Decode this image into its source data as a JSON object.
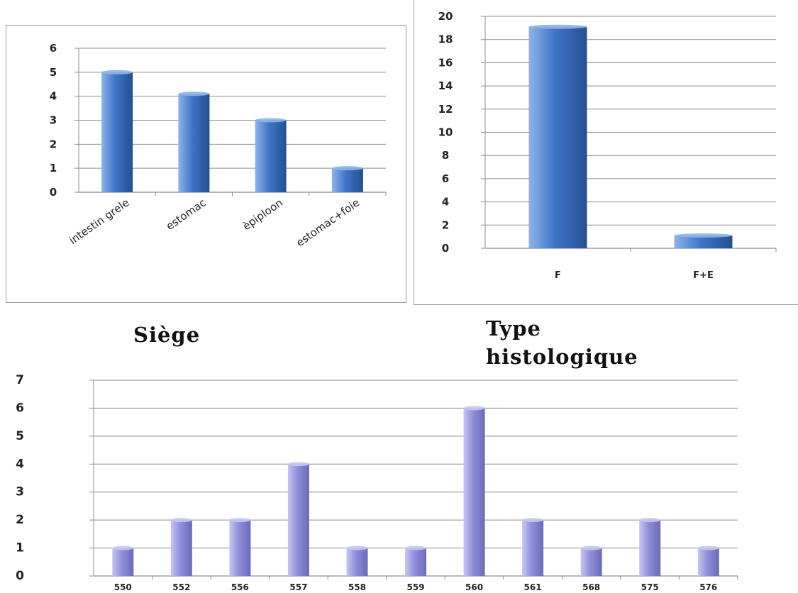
{
  "captions": {
    "siege": "Siège",
    "type": "Type histologique"
  },
  "colors": {
    "blue_bar": "#3f74c6",
    "blue_bar_dark": "#23508f",
    "blue_bar_light": "#8db4ea",
    "purple_bar": "#8e8ed9",
    "purple_bar_dark": "#6a6ab8",
    "purple_bar_light": "#c6c6f2",
    "gridline": "#8c8c8c",
    "tick_text": "#222222"
  },
  "chart_data": [
    {
      "id": "siege",
      "type": "bar",
      "categories": [
        "intestin grele",
        "estomac",
        "èpiploon",
        "estomac+foie"
      ],
      "values": [
        5,
        4.1,
        3,
        1
      ],
      "yticks": [
        0,
        1,
        2,
        3,
        4,
        5,
        6
      ],
      "ylim": [
        0,
        6
      ],
      "grid": true,
      "xlabel_rotation": "-45deg",
      "bar_color": "blue"
    },
    {
      "id": "type",
      "type": "bar",
      "categories": [
        "F",
        "F+E"
      ],
      "values": [
        19.1,
        1.1
      ],
      "yticks": [
        0,
        2,
        4,
        6,
        8,
        10,
        12,
        14,
        16,
        18,
        20
      ],
      "ylim": [
        0,
        20
      ],
      "grid": true,
      "bar_color": "blue"
    },
    {
      "id": "ages",
      "type": "bar",
      "categories": [
        "550",
        "552",
        "556",
        "557",
        "558",
        "559",
        "560",
        "561",
        "568",
        "575",
        "576"
      ],
      "values": [
        1,
        2,
        2,
        4,
        1,
        1,
        6,
        2,
        1,
        2,
        1
      ],
      "yticks": [
        0,
        1,
        2,
        3,
        4,
        5,
        6,
        7
      ],
      "ylim": [
        0,
        7
      ],
      "grid": true,
      "bar_color": "purple"
    }
  ]
}
